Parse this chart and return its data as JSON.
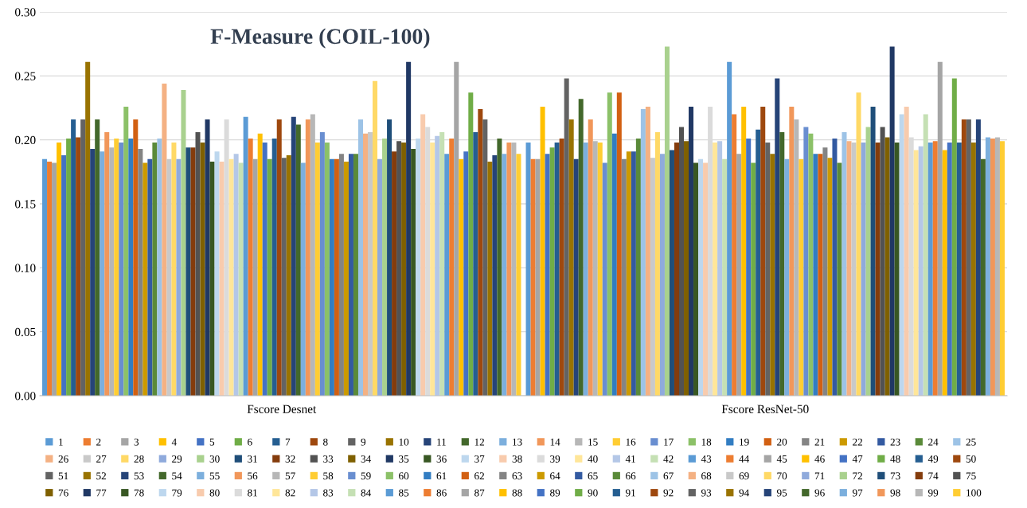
{
  "chart_data": {
    "type": "bar",
    "title": "F-Measure (COIL-100)",
    "categories": [
      "Fscore Desnet",
      "Fscore ResNet-50"
    ],
    "ylim": [
      0,
      0.3
    ],
    "yticks": [
      {
        "value": 0,
        "label": "0.00"
      },
      {
        "value": 0.05,
        "label": "0.05"
      },
      {
        "value": 0.1,
        "label": "0.10"
      },
      {
        "value": 0.15,
        "label": "0.15"
      },
      {
        "value": 0.2,
        "label": "0.20"
      },
      {
        "value": 0.25,
        "label": "0.25"
      },
      {
        "value": 0.3,
        "label": "0.30"
      }
    ],
    "grid": "y",
    "legend": "bottom",
    "series": [
      {
        "name": "1",
        "color": "#5b9bd5",
        "values": [
          0.185,
          0.198
        ]
      },
      {
        "name": "2",
        "color": "#ed7d31",
        "values": [
          0.183,
          0.185
        ]
      },
      {
        "name": "3",
        "color": "#a5a5a5",
        "values": [
          0.182,
          0.185
        ]
      },
      {
        "name": "4",
        "color": "#ffc000",
        "values": [
          0.198,
          0.226
        ]
      },
      {
        "name": "5",
        "color": "#4472c4",
        "values": [
          0.188,
          0.189
        ]
      },
      {
        "name": "6",
        "color": "#70ad47",
        "values": [
          0.201,
          0.194
        ]
      },
      {
        "name": "7",
        "color": "#255e91",
        "values": [
          0.216,
          0.198
        ]
      },
      {
        "name": "8",
        "color": "#9e480e",
        "values": [
          0.202,
          0.201
        ]
      },
      {
        "name": "9",
        "color": "#636363",
        "values": [
          0.216,
          0.248
        ]
      },
      {
        "name": "10",
        "color": "#997300",
        "values": [
          0.261,
          0.216
        ]
      },
      {
        "name": "11",
        "color": "#264478",
        "values": [
          0.193,
          0.185
        ]
      },
      {
        "name": "12",
        "color": "#43682b",
        "values": [
          0.216,
          0.232
        ]
      },
      {
        "name": "13",
        "color": "#7cafdd",
        "values": [
          0.191,
          0.198
        ]
      },
      {
        "name": "14",
        "color": "#f1975a",
        "values": [
          0.206,
          0.216
        ]
      },
      {
        "name": "15",
        "color": "#b7b7b7",
        "values": [
          0.194,
          0.199
        ]
      },
      {
        "name": "16",
        "color": "#ffcd33",
        "values": [
          0.201,
          0.198
        ]
      },
      {
        "name": "17",
        "color": "#698ed0",
        "values": [
          0.198,
          0.182
        ]
      },
      {
        "name": "18",
        "color": "#8cc168",
        "values": [
          0.226,
          0.237
        ]
      },
      {
        "name": "19",
        "color": "#327dc2",
        "values": [
          0.201,
          0.205
        ]
      },
      {
        "name": "20",
        "color": "#d26012",
        "values": [
          0.216,
          0.237
        ]
      },
      {
        "name": "21",
        "color": "#848484",
        "values": [
          0.193,
          0.185
        ]
      },
      {
        "name": "22",
        "color": "#cc9a00",
        "values": [
          0.182,
          0.191
        ]
      },
      {
        "name": "23",
        "color": "#335aa1",
        "values": [
          0.185,
          0.191
        ]
      },
      {
        "name": "24",
        "color": "#5a8a39",
        "values": [
          0.198,
          0.201
        ]
      },
      {
        "name": "25",
        "color": "#9dc3e6",
        "values": [
          0.201,
          0.224
        ]
      },
      {
        "name": "26",
        "color": "#f4b183",
        "values": [
          0.244,
          0.226
        ]
      },
      {
        "name": "27",
        "color": "#c9c9c9",
        "values": [
          0.185,
          0.186
        ]
      },
      {
        "name": "28",
        "color": "#ffd966",
        "values": [
          0.198,
          0.206
        ]
      },
      {
        "name": "29",
        "color": "#8faadc",
        "values": [
          0.185,
          0.189
        ]
      },
      {
        "name": "30",
        "color": "#a9d18e",
        "values": [
          0.239,
          0.273
        ]
      },
      {
        "name": "31",
        "color": "#1f4e79",
        "values": [
          0.194,
          0.192
        ]
      },
      {
        "name": "32",
        "color": "#843c0c",
        "values": [
          0.194,
          0.198
        ]
      },
      {
        "name": "33",
        "color": "#525252",
        "values": [
          0.206,
          0.21
        ]
      },
      {
        "name": "34",
        "color": "#7f6000",
        "values": [
          0.198,
          0.199
        ]
      },
      {
        "name": "35",
        "color": "#203864",
        "values": [
          0.216,
          0.226
        ]
      },
      {
        "name": "36",
        "color": "#385723",
        "values": [
          0.183,
          0.182
        ]
      },
      {
        "name": "37",
        "color": "#bdd7ee",
        "values": [
          0.191,
          0.185
        ]
      },
      {
        "name": "38",
        "color": "#f8cbad",
        "values": [
          0.183,
          0.182
        ]
      },
      {
        "name": "39",
        "color": "#dbdbdb",
        "values": [
          0.216,
          0.226
        ]
      },
      {
        "name": "40",
        "color": "#ffe699",
        "values": [
          0.185,
          0.198
        ]
      },
      {
        "name": "41",
        "color": "#b4c7e7",
        "values": [
          0.189,
          0.199
        ]
      },
      {
        "name": "42",
        "color": "#c5e0b4",
        "values": [
          0.182,
          0.185
        ]
      },
      {
        "name": "43",
        "color": "#5b9bd5",
        "values": [
          0.218,
          0.261
        ]
      },
      {
        "name": "44",
        "color": "#ed7d31",
        "values": [
          0.201,
          0.22
        ]
      },
      {
        "name": "45",
        "color": "#a5a5a5",
        "values": [
          0.185,
          0.189
        ]
      },
      {
        "name": "46",
        "color": "#ffc000",
        "values": [
          0.205,
          0.226
        ]
      },
      {
        "name": "47",
        "color": "#4472c4",
        "values": [
          0.198,
          0.201
        ]
      },
      {
        "name": "48",
        "color": "#70ad47",
        "values": [
          0.185,
          0.182
        ]
      },
      {
        "name": "49",
        "color": "#255e91",
        "values": [
          0.201,
          0.208
        ]
      },
      {
        "name": "50",
        "color": "#9e480e",
        "values": [
          0.216,
          0.226
        ]
      },
      {
        "name": "51",
        "color": "#636363",
        "values": [
          0.186,
          0.198
        ]
      },
      {
        "name": "52",
        "color": "#997300",
        "values": [
          0.188,
          0.189
        ]
      },
      {
        "name": "53",
        "color": "#264478",
        "values": [
          0.218,
          0.248
        ]
      },
      {
        "name": "54",
        "color": "#43682b",
        "values": [
          0.212,
          0.206
        ]
      },
      {
        "name": "55",
        "color": "#7cafdd",
        "values": [
          0.182,
          0.185
        ]
      },
      {
        "name": "56",
        "color": "#f1975a",
        "values": [
          0.216,
          0.226
        ]
      },
      {
        "name": "57",
        "color": "#b7b7b7",
        "values": [
          0.22,
          0.216
        ]
      },
      {
        "name": "58",
        "color": "#ffcd33",
        "values": [
          0.198,
          0.185
        ]
      },
      {
        "name": "59",
        "color": "#698ed0",
        "values": [
          0.206,
          0.21
        ]
      },
      {
        "name": "60",
        "color": "#8cc168",
        "values": [
          0.198,
          0.205
        ]
      },
      {
        "name": "61",
        "color": "#327dc2",
        "values": [
          0.185,
          0.189
        ]
      },
      {
        "name": "62",
        "color": "#d26012",
        "values": [
          0.185,
          0.189
        ]
      },
      {
        "name": "63",
        "color": "#848484",
        "values": [
          0.189,
          0.194
        ]
      },
      {
        "name": "64",
        "color": "#cc9a00",
        "values": [
          0.183,
          0.186
        ]
      },
      {
        "name": "65",
        "color": "#335aa1",
        "values": [
          0.189,
          0.201
        ]
      },
      {
        "name": "66",
        "color": "#5a8a39",
        "values": [
          0.189,
          0.182
        ]
      },
      {
        "name": "67",
        "color": "#9dc3e6",
        "values": [
          0.216,
          0.206
        ]
      },
      {
        "name": "68",
        "color": "#f4b183",
        "values": [
          0.205,
          0.199
        ]
      },
      {
        "name": "69",
        "color": "#c9c9c9",
        "values": [
          0.206,
          0.198
        ]
      },
      {
        "name": "70",
        "color": "#ffd966",
        "values": [
          0.246,
          0.237
        ]
      },
      {
        "name": "71",
        "color": "#8faadc",
        "values": [
          0.185,
          0.198
        ]
      },
      {
        "name": "72",
        "color": "#a9d18e",
        "values": [
          0.201,
          0.21
        ]
      },
      {
        "name": "73",
        "color": "#1f4e79",
        "values": [
          0.216,
          0.226
        ]
      },
      {
        "name": "74",
        "color": "#843c0c",
        "values": [
          0.191,
          0.198
        ]
      },
      {
        "name": "75",
        "color": "#525252",
        "values": [
          0.199,
          0.21
        ]
      },
      {
        "name": "76",
        "color": "#7f6000",
        "values": [
          0.198,
          0.202
        ]
      },
      {
        "name": "77",
        "color": "#203864",
        "values": [
          0.261,
          0.273
        ]
      },
      {
        "name": "78",
        "color": "#385723",
        "values": [
          0.193,
          0.198
        ]
      },
      {
        "name": "79",
        "color": "#bdd7ee",
        "values": [
          0.201,
          0.22
        ]
      },
      {
        "name": "80",
        "color": "#f8cbad",
        "values": [
          0.22,
          0.226
        ]
      },
      {
        "name": "81",
        "color": "#dbdbdb",
        "values": [
          0.21,
          0.202
        ]
      },
      {
        "name": "82",
        "color": "#ffe699",
        "values": [
          0.198,
          0.192
        ]
      },
      {
        "name": "83",
        "color": "#b4c7e7",
        "values": [
          0.203,
          0.195
        ]
      },
      {
        "name": "84",
        "color": "#c5e0b4",
        "values": [
          0.206,
          0.22
        ]
      },
      {
        "name": "85",
        "color": "#5b9bd5",
        "values": [
          0.189,
          0.198
        ]
      },
      {
        "name": "86",
        "color": "#ed7d31",
        "values": [
          0.201,
          0.199
        ]
      },
      {
        "name": "87",
        "color": "#a5a5a5",
        "values": [
          0.261,
          0.261
        ]
      },
      {
        "name": "88",
        "color": "#ffc000",
        "values": [
          0.185,
          0.192
        ]
      },
      {
        "name": "89",
        "color": "#4472c4",
        "values": [
          0.191,
          0.198
        ]
      },
      {
        "name": "90",
        "color": "#70ad47",
        "values": [
          0.237,
          0.248
        ]
      },
      {
        "name": "91",
        "color": "#255e91",
        "values": [
          0.206,
          0.198
        ]
      },
      {
        "name": "92",
        "color": "#9e480e",
        "values": [
          0.224,
          0.216
        ]
      },
      {
        "name": "93",
        "color": "#636363",
        "values": [
          0.216,
          0.216
        ]
      },
      {
        "name": "94",
        "color": "#997300",
        "values": [
          0.183,
          0.198
        ]
      },
      {
        "name": "95",
        "color": "#264478",
        "values": [
          0.188,
          0.216
        ]
      },
      {
        "name": "96",
        "color": "#43682b",
        "values": [
          0.201,
          0.185
        ]
      },
      {
        "name": "97",
        "color": "#7cafdd",
        "values": [
          0.189,
          0.202
        ]
      },
      {
        "name": "98",
        "color": "#f1975a",
        "values": [
          0.198,
          0.201
        ]
      },
      {
        "name": "99",
        "color": "#b7b7b7",
        "values": [
          0.198,
          0.202
        ]
      },
      {
        "name": "100",
        "color": "#ffcd33",
        "values": [
          0.189,
          0.199
        ]
      }
    ]
  }
}
